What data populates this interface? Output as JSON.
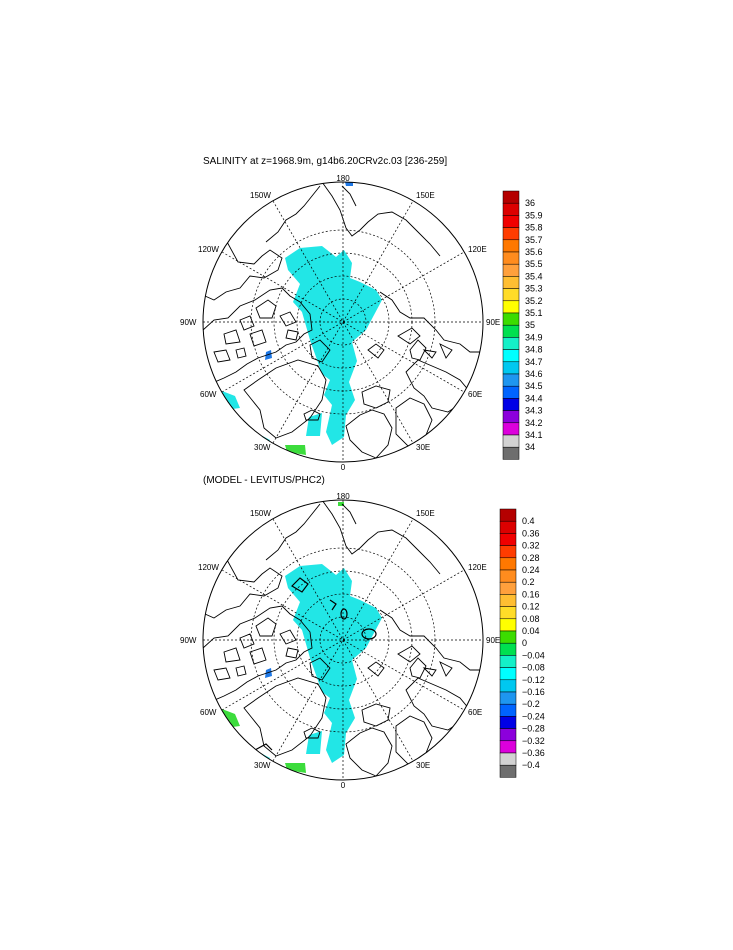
{
  "maps": [
    {
      "title": "SALINITY at z=1968.9m, g14b6.20CRv2c.03 [236-259]",
      "lon_labels": {
        "top": "180",
        "bottom": "0",
        "left": "90W",
        "right": "90E",
        "ul1": "150W",
        "ul2": "120W",
        "ur1": "150E",
        "ur2": "120E",
        "ll1": "60W",
        "ll2": "30W",
        "lr1": "60E",
        "lr2": "30E"
      },
      "colorbar": {
        "labels": [
          "36",
          "35.9",
          "35.8",
          "35.7",
          "35.6",
          "35.5",
          "35.4",
          "35.3",
          "35.2",
          "35.1",
          "35",
          "34.9",
          "34.8",
          "34.7",
          "34.6",
          "34.5",
          "34.4",
          "34.3",
          "34.2",
          "34.1",
          "34"
        ]
      }
    },
    {
      "title": "(MODEL - LEVITUS/PHC2)",
      "lon_labels": {
        "top": "180",
        "bottom": "0",
        "left": "90W",
        "right": "90E",
        "ul1": "150W",
        "ul2": "120W",
        "ur1": "150E",
        "ur2": "120E",
        "ll1": "60W",
        "ll2": "30W",
        "lr1": "60E",
        "lr2": "30E"
      },
      "colorbar": {
        "labels": [
          "0.4",
          "0.36",
          "0.32",
          "0.28",
          "0.24",
          "0.2",
          "0.16",
          "0.12",
          "0.08",
          "0.04",
          "0",
          "−0.04",
          "−0.08",
          "−0.12",
          "−0.16",
          "−0.2",
          "−0.24",
          "−0.28",
          "−0.32",
          "−0.36",
          "−0.4"
        ]
      }
    }
  ],
  "colors": {
    "scale": [
      "#b40000",
      "#dc0000",
      "#f00000",
      "#ff3c00",
      "#ff7800",
      "#ff8c1e",
      "#ffa03c",
      "#ffbe32",
      "#ffdc28",
      "#ffff00",
      "#3cdc00",
      "#00e050",
      "#14f0c8",
      "#00ffff",
      "#00c8f0",
      "#1e96f0",
      "#0064ff",
      "#0000e6",
      "#8c00dc",
      "#dc00dc",
      "#d2d2d2",
      "#6e6e6e"
    ],
    "fill_main": "#22e6e6",
    "fill_blue": "#1e78e6",
    "fill_green": "#3cdc3c"
  }
}
